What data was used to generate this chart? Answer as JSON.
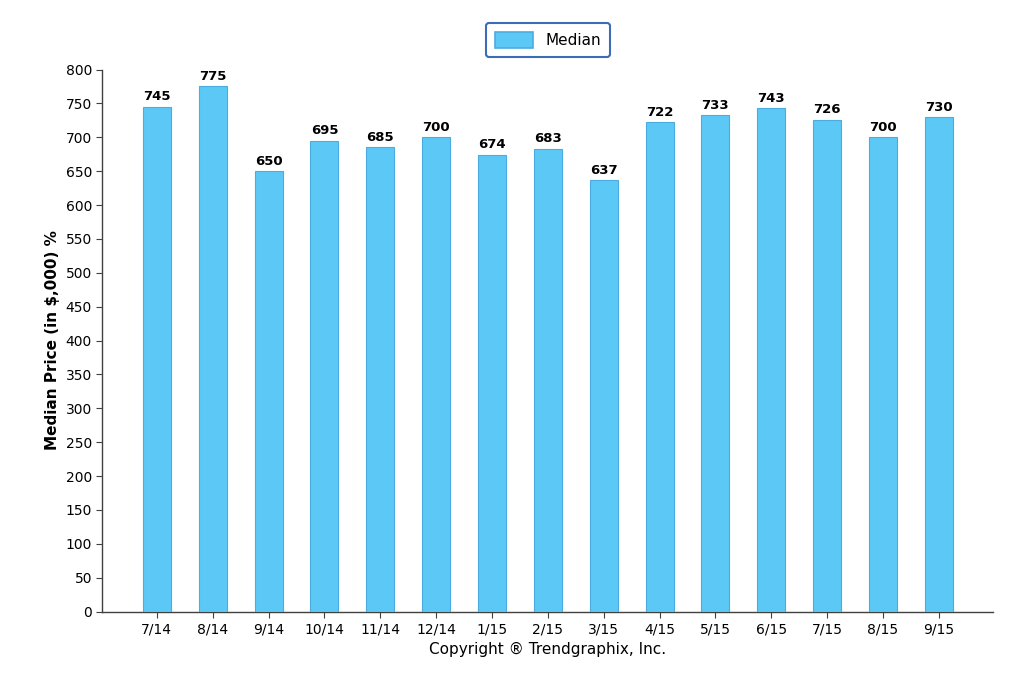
{
  "categories": [
    "7/14",
    "8/14",
    "9/14",
    "10/14",
    "11/14",
    "12/14",
    "1/15",
    "2/15",
    "3/15",
    "4/15",
    "5/15",
    "6/15",
    "7/15",
    "8/15",
    "9/15"
  ],
  "values": [
    745,
    775,
    650,
    695,
    685,
    700,
    674,
    683,
    637,
    722,
    733,
    743,
    726,
    700,
    730
  ],
  "bar_color": "#5BC8F5",
  "bar_edge_color": "#4AACE0",
  "ylabel": "Median Price (in $,000) %",
  "xlabel": "Copyright ® Trendgraphix, Inc.",
  "legend_label": "Median",
  "ylim": [
    0,
    800
  ],
  "yticks": [
    0,
    50,
    100,
    150,
    200,
    250,
    300,
    350,
    400,
    450,
    500,
    550,
    600,
    650,
    700,
    750,
    800
  ],
  "value_label_fontsize": 9.5,
  "axis_label_fontsize": 11,
  "tick_fontsize": 10,
  "legend_fontsize": 11,
  "background_color": "#ffffff",
  "bar_width": 0.5,
  "legend_edge_color": "#3B6CB5",
  "spine_color": "#404040"
}
